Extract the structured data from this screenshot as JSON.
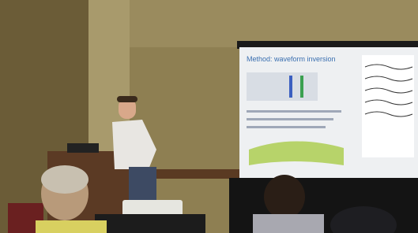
{
  "slide": {
    "title": "Method: waveform inversion"
  }
}
